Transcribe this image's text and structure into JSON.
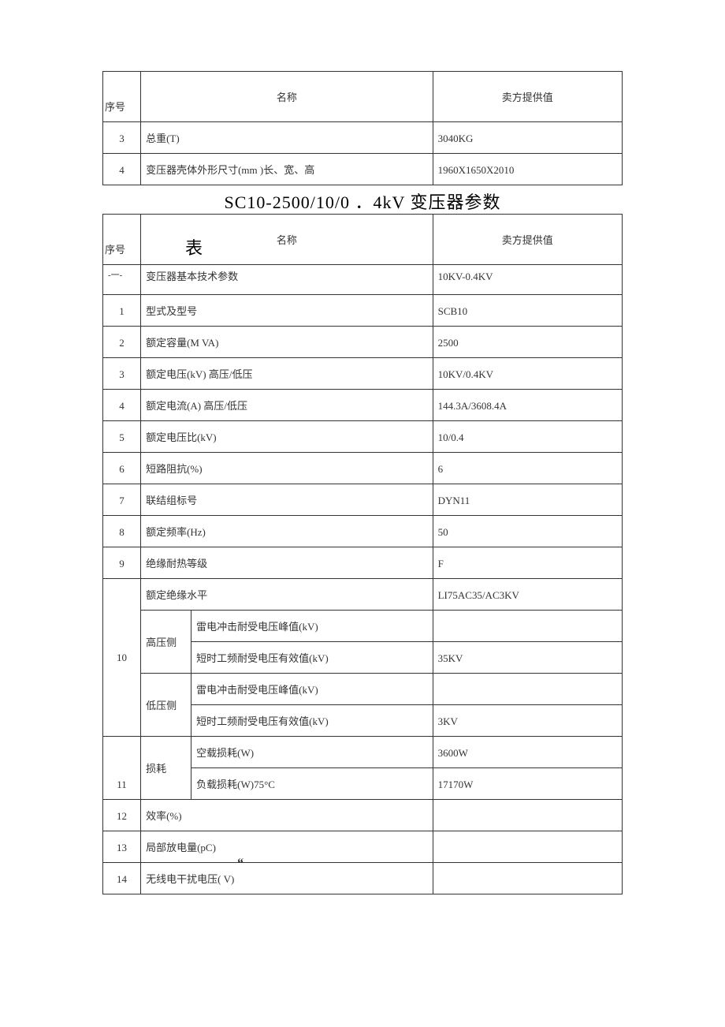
{
  "table1": {
    "headers": {
      "seq": "序号",
      "name": "名称",
      "val": "卖方提供值"
    },
    "rows": [
      {
        "seq": "3",
        "name": "总重(T)",
        "val": "3040KG"
      },
      {
        "seq": "4",
        "name": "变压器壳体外形尺寸(mm )长、宽、高",
        "val": "1960X1650X2010"
      }
    ]
  },
  "title": "SC10-2500/10/0 ．4kV 变压器参数",
  "biao": "表",
  "table2": {
    "headers": {
      "seq": "序号",
      "name": "名称",
      "val": "卖方提供值"
    },
    "dash": "-一-",
    "dash_name": "变压器基本技术参数",
    "dash_val": "10KV-0.4KV",
    "rows": [
      {
        "seq": "1",
        "name": "型式及型号",
        "val": "SCB10"
      },
      {
        "seq": "2",
        "name": "额定容量(M VA)",
        "val": "2500"
      },
      {
        "seq": "3",
        "name": "额定电压(kV)    高压/低压",
        "val": "10KV/0.4KV"
      },
      {
        "seq": "4",
        "name": "额定电流(A)   高压/低压",
        "val": "144.3A/3608.4A"
      },
      {
        "seq": "5",
        "name": "额定电压比(kV)",
        "val": "10/0.4"
      },
      {
        "seq": "6",
        "name": "短路阻抗(%)",
        "val": "6"
      },
      {
        "seq": "7",
        "name": "联结组标号",
        "val": "DYN11"
      },
      {
        "seq": "8",
        "name": "额定频率(Hz)",
        "val": "50"
      },
      {
        "seq": "9",
        "name": "绝缘耐热等级",
        "val": "F"
      }
    ],
    "row10": {
      "seq": "10",
      "top_name": "额定绝缘水平",
      "top_val": "LI75AC35/AC3KV",
      "hv_label": "高压侧",
      "lv_label": "低压侧",
      "sub1": "雷电冲击耐受电压峰值(kV)",
      "sub1_val": "",
      "sub2": "短时工频耐受电压有效值(kV)",
      "sub2_val": "35KV",
      "sub3": "雷电冲击耐受电压峰值(kV)",
      "sub3_val": "",
      "sub4": "短时工频耐受电压有效值(kV)",
      "sub4_val": "3KV"
    },
    "row11": {
      "seq": "11",
      "label": "损耗",
      "sub1": "空载损耗(W)",
      "sub1_val": "3600W",
      "sub2": "负载损耗(W)75°C",
      "sub2_val": "17170W"
    },
    "rows_end": [
      {
        "seq": "12",
        "name": "效率(%)",
        "val": ""
      },
      {
        "seq": "13",
        "name": "局部放电量(pC)",
        "val": ""
      }
    ],
    "row14": {
      "seq": "14",
      "quote": "“",
      "name": "无线电干扰电压(  V)",
      "val": ""
    }
  }
}
